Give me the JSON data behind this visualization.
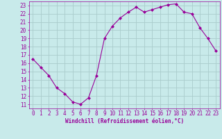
{
  "hours": [
    0,
    1,
    2,
    3,
    4,
    5,
    6,
    7,
    8,
    9,
    10,
    11,
    12,
    13,
    14,
    15,
    16,
    17,
    18,
    19,
    20,
    21,
    22,
    23
  ],
  "values": [
    16.5,
    15.5,
    14.5,
    13.0,
    12.3,
    11.3,
    11.0,
    11.8,
    14.5,
    19.0,
    20.5,
    21.5,
    22.2,
    22.8,
    22.2,
    22.5,
    22.8,
    23.1,
    23.2,
    22.2,
    22.0,
    20.3,
    19.0,
    17.5
  ],
  "line_color": "#990099",
  "marker": "D",
  "marker_size": 2,
  "bg_color": "#c8eaea",
  "grid_color": "#aacccc",
  "xlabel": "Windchill (Refroidissement éolien,°C)",
  "xlabel_color": "#990099",
  "tick_color": "#990099",
  "ylabel_ticks": [
    11,
    12,
    13,
    14,
    15,
    16,
    17,
    18,
    19,
    20,
    21,
    22,
    23
  ],
  "ylim": [
    10.5,
    23.5
  ],
  "xlim": [
    -0.5,
    23.5
  ],
  "xlabel_fontsize": 5.5,
  "tick_fontsize": 5.5
}
